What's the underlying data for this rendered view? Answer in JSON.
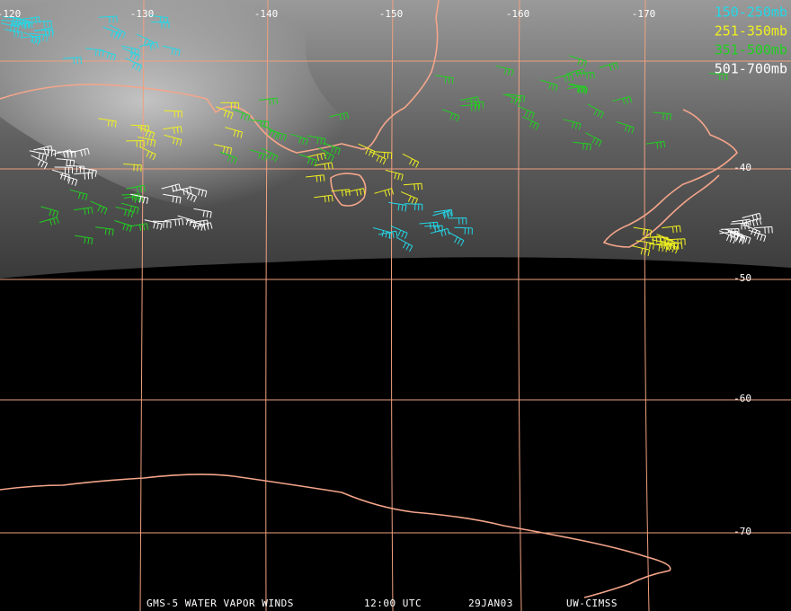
{
  "map": {
    "longitude_labels": [
      "-120",
      "-130",
      "-140",
      "-150",
      "-160",
      "-170"
    ],
    "latitude_labels": [
      "-40",
      "-50",
      "-60",
      "-70"
    ],
    "legend": [
      "150-250mb",
      "251-350mb",
      "351-500mb",
      "501-700mb"
    ],
    "footer": [
      "GMS-5 WATER VAPOR WINDS",
      "12:00 UTC",
      "29JAN03",
      "UW-CIMSS"
    ]
  }
}
